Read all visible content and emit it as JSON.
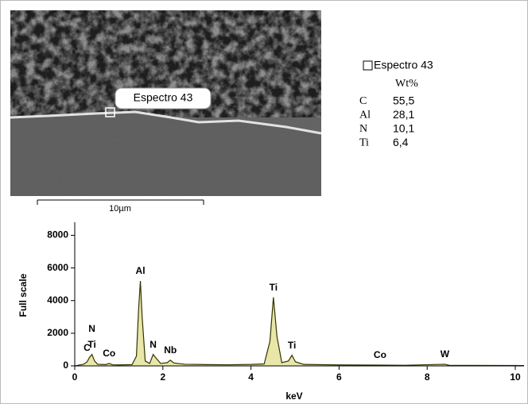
{
  "image": {
    "label": "Espectro 43",
    "scale_bar": "10µm"
  },
  "composition": {
    "title": "Espectro 43",
    "header": "Wt%",
    "rows": [
      [
        "C",
        "55,5"
      ],
      [
        "Al",
        "28,1"
      ],
      [
        "N",
        "10,1"
      ],
      [
        "Ti",
        "6,4"
      ]
    ]
  },
  "chart_data": {
    "type": "line",
    "x_label": "keV",
    "y_label": "Full scale",
    "xlim": [
      0,
      10.2
    ],
    "ylim": [
      0,
      8800
    ],
    "xticks": [
      0,
      2,
      4,
      6,
      8,
      10
    ],
    "yticks": [
      0,
      2000,
      4000,
      6000,
      8000
    ],
    "color": "#333300",
    "fill": "#e8e6a8",
    "x": [
      0,
      0.1,
      0.2,
      0.28,
      0.33,
      0.39,
      0.45,
      0.52,
      0.7,
      0.78,
      0.86,
      1.0,
      1.3,
      1.4,
      1.45,
      1.49,
      1.53,
      1.6,
      1.7,
      1.78,
      1.84,
      1.95,
      2.1,
      2.17,
      2.25,
      2.5,
      3.0,
      3.5,
      4.0,
      4.3,
      4.43,
      4.51,
      4.59,
      4.7,
      4.85,
      4.93,
      5.01,
      5.2,
      6.0,
      6.93,
      7.5,
      8.4,
      8.5,
      9.0,
      10.0,
      10.2
    ],
    "values": [
      0,
      50,
      100,
      250,
      500,
      700,
      300,
      100,
      80,
      150,
      70,
      60,
      80,
      600,
      3500,
      5200,
      3000,
      300,
      150,
      700,
      500,
      150,
      200,
      350,
      180,
      100,
      80,
      70,
      90,
      120,
      1500,
      4200,
      1800,
      200,
      300,
      650,
      250,
      90,
      60,
      50,
      40,
      100,
      40,
      30,
      25,
      20
    ],
    "annotations": [
      {
        "text": "C",
        "x": 0.28
      },
      {
        "text": "N",
        "x": 0.39
      },
      {
        "text": "Ti",
        "x": 0.39
      },
      {
        "text": "Co",
        "x": 0.78
      },
      {
        "text": "Al",
        "x": 1.49
      },
      {
        "text": "N",
        "x": 1.78
      },
      {
        "text": "Nb",
        "x": 2.17
      },
      {
        "text": "Ti",
        "x": 4.51
      },
      {
        "text": "Ti",
        "x": 4.93
      },
      {
        "text": "Co",
        "x": 6.93
      },
      {
        "text": "W",
        "x": 8.4
      }
    ]
  }
}
